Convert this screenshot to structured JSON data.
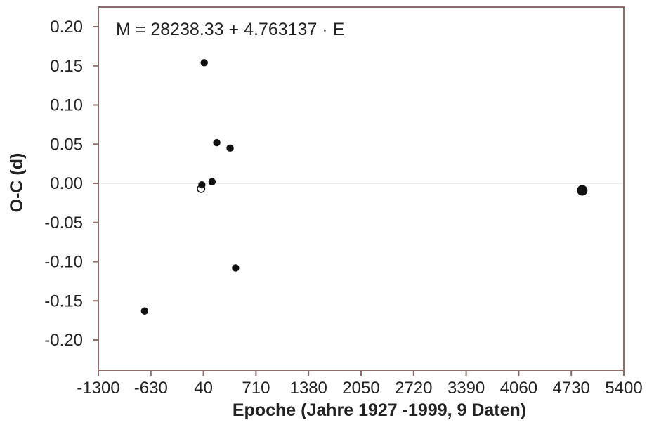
{
  "chart_data": {
    "type": "scatter",
    "formula": "M = 28238.33 + 4.763137 · E",
    "xlabel": "Epoche (Jahre 1927 -1999, 9 Daten)",
    "ylabel": "O-C (d)",
    "xlim": [
      -1300,
      5400
    ],
    "ylim": [
      -0.24,
      0.22
    ],
    "x_ticks": [
      -1300,
      -630,
      40,
      710,
      1380,
      2050,
      2720,
      3390,
      4060,
      4730,
      5400
    ],
    "x_tick_labels": [
      "-1300",
      "-630",
      "40",
      "710",
      "1380",
      "2050",
      "2720",
      "3390",
      "4060",
      "4730",
      "5400"
    ],
    "y_ticks": [
      0.2,
      0.15,
      0.1,
      0.05,
      0.0,
      -0.05,
      -0.1,
      -0.15,
      -0.2
    ],
    "y_tick_labels": [
      "0.20",
      "0.15",
      "0.10",
      "0.05",
      "0.00",
      "-0.05",
      "-0.10",
      "-0.15",
      "-0.20"
    ],
    "zero_line": true,
    "grid": false,
    "colors": {
      "frame": "#8b6e6b",
      "points": "#111111",
      "zero_line": "#dddddd"
    },
    "points": [
      {
        "x": -710,
        "y": -0.163,
        "style": "filled",
        "size": "normal"
      },
      {
        "x": 10,
        "y": -0.007,
        "style": "open",
        "size": "normal"
      },
      {
        "x": 20,
        "y": -0.002,
        "style": "filled",
        "size": "normal"
      },
      {
        "x": 50,
        "y": 0.154,
        "style": "filled",
        "size": "normal"
      },
      {
        "x": 150,
        "y": 0.002,
        "style": "filled",
        "size": "normal"
      },
      {
        "x": 210,
        "y": 0.052,
        "style": "filled",
        "size": "normal"
      },
      {
        "x": 380,
        "y": 0.045,
        "style": "filled",
        "size": "normal"
      },
      {
        "x": 450,
        "y": -0.108,
        "style": "filled",
        "size": "normal"
      },
      {
        "x": 4870,
        "y": -0.009,
        "style": "filled",
        "size": "large"
      }
    ]
  }
}
